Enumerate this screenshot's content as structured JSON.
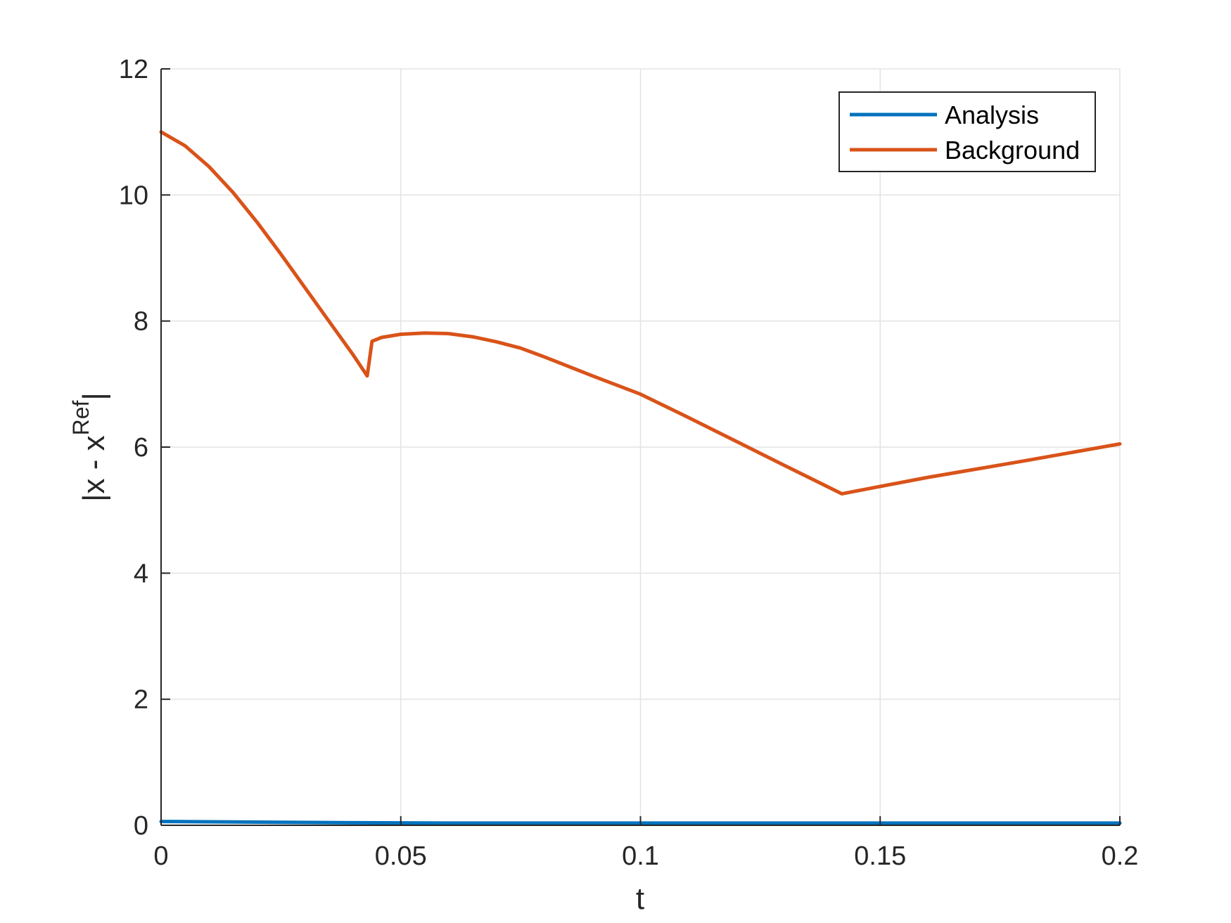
{
  "chart_data": {
    "type": "line",
    "xlabel": "t",
    "ylabel": {
      "base": "|x - x",
      "superscript": "Ref",
      "close": "|"
    },
    "xlim": [
      0,
      0.2
    ],
    "ylim": [
      0,
      12
    ],
    "x_ticks": [
      0,
      0.05,
      0.1,
      0.15,
      0.2
    ],
    "x_tick_labels": [
      "0",
      "0.05",
      "0.1",
      "0.15",
      "0.2"
    ],
    "y_ticks": [
      0,
      2,
      4,
      6,
      8,
      10,
      12
    ],
    "y_tick_labels": [
      "0",
      "2",
      "4",
      "6",
      "8",
      "10",
      "12"
    ],
    "grid": true,
    "legend_position": "top-right",
    "series": [
      {
        "name": "Analysis",
        "color": "#0072BD",
        "x": [
          0,
          0.02,
          0.04,
          0.06,
          0.08,
          0.1,
          0.12,
          0.14,
          0.16,
          0.18,
          0.2
        ],
        "y": [
          0.06,
          0.05,
          0.04,
          0.035,
          0.035,
          0.035,
          0.035,
          0.035,
          0.035,
          0.035,
          0.035
        ]
      },
      {
        "name": "Background",
        "color": "#D95319",
        "x": [
          0,
          0.005,
          0.01,
          0.015,
          0.02,
          0.025,
          0.03,
          0.035,
          0.04,
          0.043,
          0.044,
          0.046,
          0.05,
          0.055,
          0.06,
          0.065,
          0.07,
          0.075,
          0.08,
          0.09,
          0.1,
          0.11,
          0.12,
          0.13,
          0.142,
          0.16,
          0.18,
          0.2
        ],
        "y": [
          11.0,
          10.78,
          10.45,
          10.04,
          9.57,
          9.06,
          8.53,
          8.0,
          7.47,
          7.13,
          7.68,
          7.74,
          7.79,
          7.81,
          7.8,
          7.75,
          7.67,
          7.57,
          7.43,
          7.13,
          6.84,
          6.47,
          6.09,
          5.71,
          5.26,
          5.52,
          5.78,
          6.05
        ]
      }
    ]
  }
}
